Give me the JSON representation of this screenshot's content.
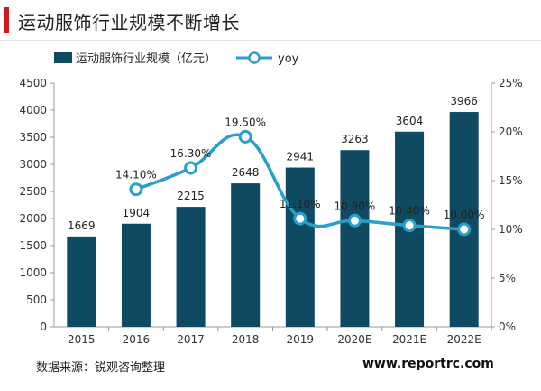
{
  "title": "运动服饰行业规模不断增长",
  "source_text": "数据来源：锐观咨询整理",
  "watermark": "www.reportrc.com",
  "colors": {
    "bar": "#0f4a63",
    "line": "#2a9fc9",
    "accent": "#d4171e"
  },
  "chart_data": {
    "type": "bar",
    "categories": [
      "2015",
      "2016",
      "2017",
      "2018",
      "2019",
      "2020E",
      "2021E",
      "2022E"
    ],
    "series": [
      {
        "name": "运动服饰行业规模（亿元）",
        "type": "bar",
        "axis": "left",
        "values": [
          1669,
          1904,
          2215,
          2648,
          2941,
          3263,
          3604,
          3966
        ],
        "labels": [
          "1669",
          "1904",
          "2215",
          "2648",
          "2941",
          "3263",
          "3604",
          "3966"
        ]
      },
      {
        "name": "yoy",
        "type": "line",
        "axis": "right",
        "values": [
          null,
          14.1,
          16.3,
          19.5,
          11.1,
          10.9,
          10.4,
          10.0
        ],
        "labels": [
          "",
          "14.10%",
          "16.30%",
          "19.50%",
          "11.10%",
          "10.90%",
          "10.40%",
          "10.00%"
        ]
      }
    ],
    "ylim_left": [
      0,
      4500
    ],
    "yticks_left": [
      "0",
      "500",
      "1000",
      "1500",
      "2000",
      "2500",
      "3000",
      "3500",
      "4000",
      "4500"
    ],
    "ylim_right": [
      0,
      25
    ],
    "yticks_right": [
      "0%",
      "5%",
      "10%",
      "15%",
      "20%",
      "25%"
    ],
    "grid": false,
    "legend": "top-left"
  }
}
